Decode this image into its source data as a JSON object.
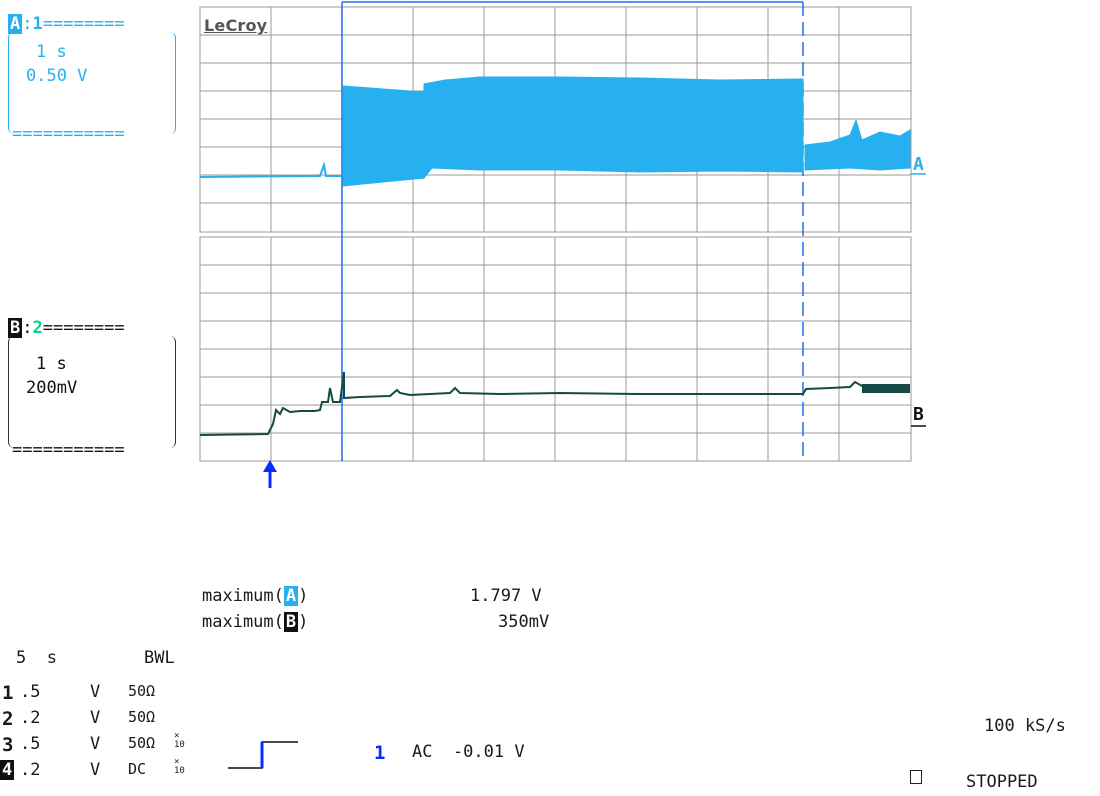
{
  "brand": "LeCroy",
  "trace_a": {
    "header_letter": "A",
    "header_channel": "1",
    "header_line": "========",
    "footer_line": "===========",
    "timebase": "1 s",
    "scale": "0.50 V",
    "marker": "A"
  },
  "trace_b": {
    "header_letter": "B",
    "header_channel": "2",
    "header_line": "========",
    "footer_line": "===========",
    "timebase": "1 s",
    "scale": "200mV",
    "marker": "B"
  },
  "measurements": [
    {
      "label_prefix": "maximum(",
      "label_letter": "A",
      "label_suffix": ")",
      "value": "1.797 V"
    },
    {
      "label_prefix": "maximum(",
      "label_letter": "B",
      "label_suffix": ")",
      "value": "350mV"
    }
  ],
  "timebase_setting": "5  s",
  "bwl": "BWL",
  "channels": [
    {
      "num": "1",
      "volts": ".5",
      "unit": "V",
      "coupling": "50Ω",
      "probe": ""
    },
    {
      "num": "2",
      "volts": ".2",
      "unit": "V",
      "coupling": "50Ω",
      "probe": ""
    },
    {
      "num": "3",
      "volts": ".5",
      "unit": "V",
      "coupling": "50Ω",
      "probe": "×\n10"
    },
    {
      "num": "4",
      "volts": ".2",
      "unit": "V",
      "coupling": "DC",
      "probe": "×\n10"
    }
  ],
  "trigger": {
    "channel": "1",
    "text": "AC  -0.01 V"
  },
  "sample_rate": "100 kS/s",
  "status": "STOPPED",
  "colors": {
    "trace_a": "#27b0f0",
    "trace_b": "#154a46",
    "cursor": "#1f6fe8",
    "grid": "#9a9a9a"
  }
}
